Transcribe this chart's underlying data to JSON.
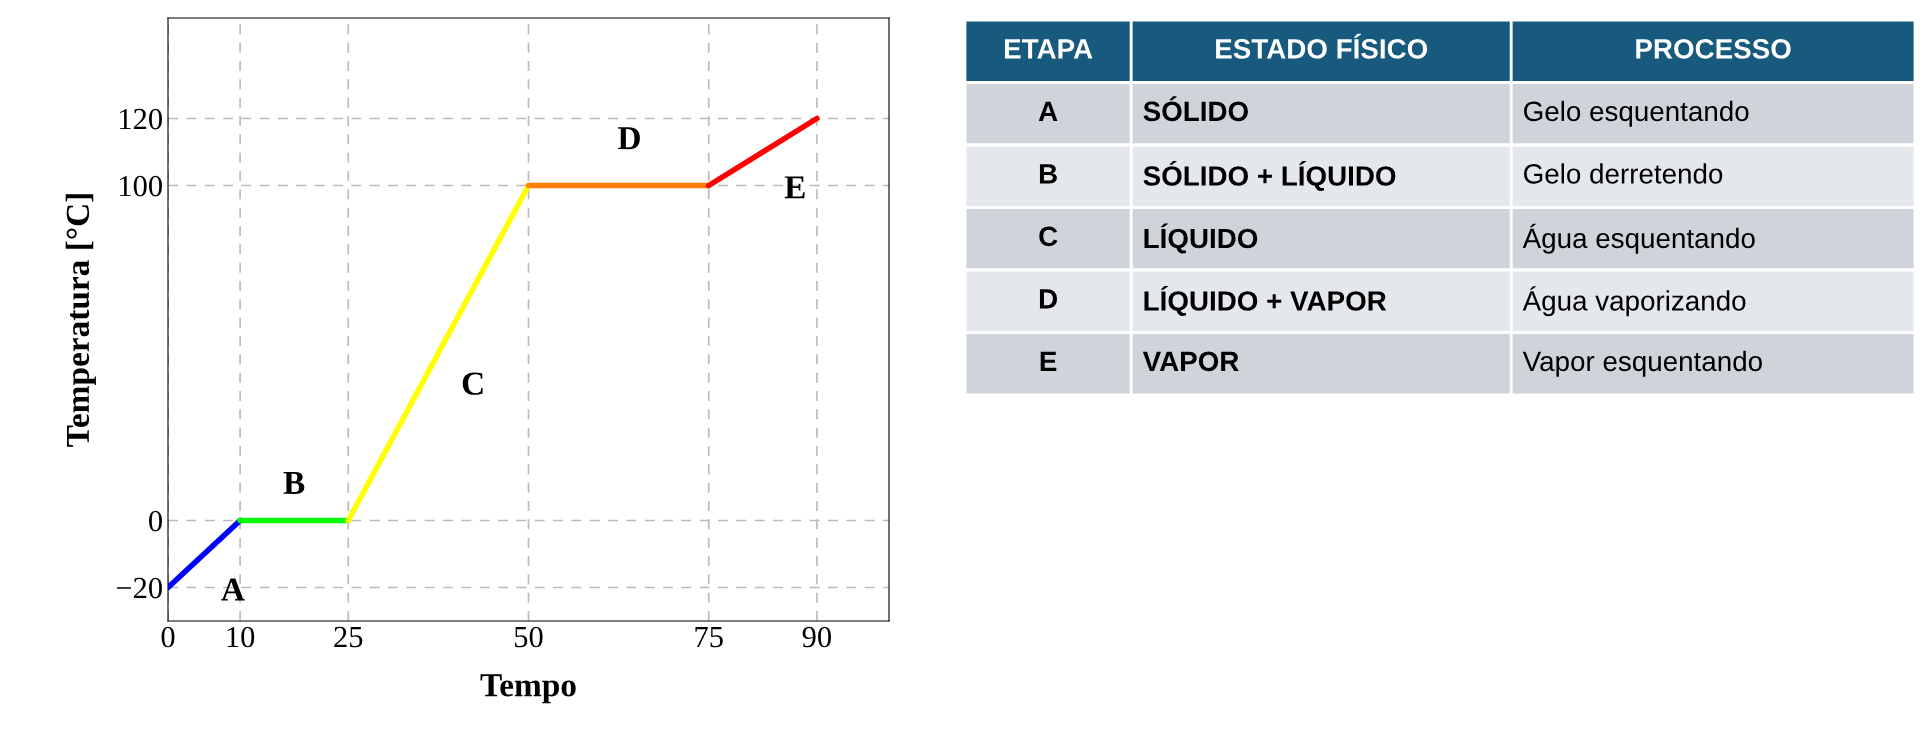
{
  "chart_data": [
    {
      "type": "line",
      "xlabel": "Tempo",
      "ylabel": "Temperatura [°C]",
      "series": [
        {
          "color": "#0000ff",
          "x": [
            0,
            10
          ],
          "values": [
            -20,
            0
          ]
        },
        {
          "color": "#00ff00",
          "x": [
            10,
            25
          ],
          "values": [
            0,
            0
          ]
        },
        {
          "color": "#ffff00",
          "x": [
            25,
            50
          ],
          "values": [
            0,
            100
          ]
        },
        {
          "color": "#ff8000",
          "x": [
            50,
            75
          ],
          "values": [
            100,
            100
          ]
        },
        {
          "color": "#ff0000",
          "x": [
            75,
            90
          ],
          "values": [
            100,
            120
          ]
        }
      ],
      "xlim": [
        0,
        100
      ],
      "ylim": [
        -30,
        150
      ],
      "xticks": [
        0,
        10,
        25,
        50,
        75,
        90
      ],
      "yticks": [
        -20,
        0,
        100,
        120
      ],
      "grid": true,
      "line_style": "solid",
      "marker": "none",
      "annotations": [
        {
          "text": "A",
          "x": 9,
          "y": -2
        },
        {
          "text": "B",
          "x": 17.5,
          "y": 0
        },
        {
          "text": "C",
          "x": 35,
          "y": 40
        },
        {
          "text": "D",
          "x": 64,
          "y": 100
        },
        {
          "text": "E",
          "x": 87,
          "y": 116
        }
      ]
    },
    {
      "type": "other",
      "categories": [
        "ETAPA",
        "ESTADO FÍSICO",
        "PROCESSO"
      ],
      "cell_labels": [
        [
          "A",
          "SÓLIDO",
          "Gelo esquentando"
        ],
        [
          "B",
          "SÓLIDO + LÍQUIDO",
          "Gelo derretendo"
        ],
        [
          "C",
          "LÍQUIDO",
          "Água esquentando"
        ],
        [
          "D",
          "LÍQUIDO + VAPOR",
          "Água vaporizando"
        ],
        [
          "E",
          "VAPOR",
          "Vapor esquentando"
        ]
      ]
    }
  ]
}
